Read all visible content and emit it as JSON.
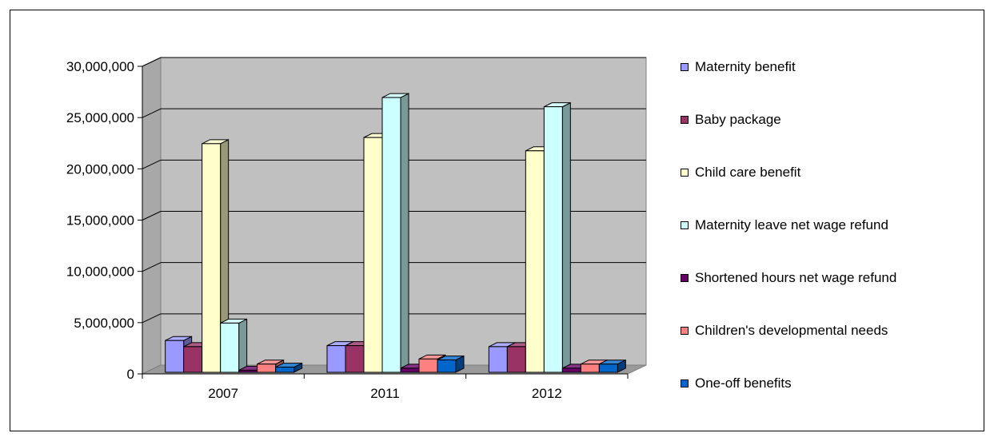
{
  "chart_data": {
    "type": "bar",
    "title": "",
    "xlabel": "",
    "ylabel": "",
    "categories": [
      "2007",
      "2011",
      "2012"
    ],
    "ylim": [
      0,
      30000000
    ],
    "yticks": [
      0,
      5000000,
      10000000,
      15000000,
      20000000,
      25000000,
      30000000
    ],
    "ytick_labels": [
      "0",
      "5,000,000",
      "10,000,000",
      "15,000,000",
      "20,000,000",
      "25,000,000",
      "30,000,000"
    ],
    "grid": true,
    "three_d": true,
    "legend_position": "right",
    "series": [
      {
        "name": "Maternity benefit",
        "color": "#9999FF",
        "values": [
          3100000,
          2600000,
          2500000
        ]
      },
      {
        "name": "Baby package",
        "color": "#993366",
        "values": [
          2500000,
          2600000,
          2500000
        ]
      },
      {
        "name": "Child care benefit",
        "color": "#FFFFCC",
        "values": [
          22300000,
          22900000,
          21600000
        ]
      },
      {
        "name": "Maternity leave net wage refund",
        "color": "#CCFFFF",
        "values": [
          4800000,
          26800000,
          25900000
        ]
      },
      {
        "name": "Shortened hours net wage refund",
        "color": "#660066",
        "values": [
          200000,
          400000,
          400000
        ]
      },
      {
        "name": "Children's developmental needs",
        "color": "#FF8080",
        "values": [
          800000,
          1300000,
          800000
        ]
      },
      {
        "name": "One-off benefits",
        "color": "#0066CC",
        "values": [
          500000,
          1200000,
          800000
        ]
      }
    ]
  }
}
